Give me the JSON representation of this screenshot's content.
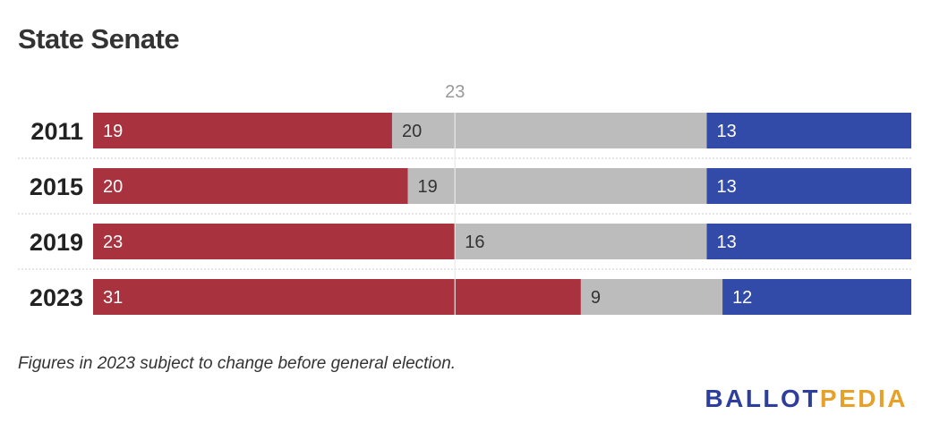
{
  "title": "State Senate",
  "note": "Figures in 2023 subject to change before general election.",
  "logo": {
    "part1": "BALLOT",
    "part2": "PEDIA"
  },
  "colors": {
    "republican": "#a8323e",
    "other": "#bcbcbc",
    "democratic": "#334ba8",
    "majority_line": "#e8e8e8",
    "label_on_dark": "#ffffff",
    "label_on_gray": "#333333",
    "marker_label": "#999999"
  },
  "chart_data": {
    "type": "bar",
    "stacked": true,
    "orientation": "horizontal",
    "categories": [
      "2011",
      "2015",
      "2019",
      "2023"
    ],
    "series": [
      {
        "key": "republican",
        "values": [
          19,
          20,
          23,
          31
        ]
      },
      {
        "key": "other",
        "values": [
          20,
          19,
          16,
          9
        ]
      },
      {
        "key": "democratic",
        "values": [
          13,
          13,
          13,
          12
        ]
      }
    ],
    "total": 52,
    "reference_line": {
      "value": 23,
      "label": "23"
    }
  }
}
